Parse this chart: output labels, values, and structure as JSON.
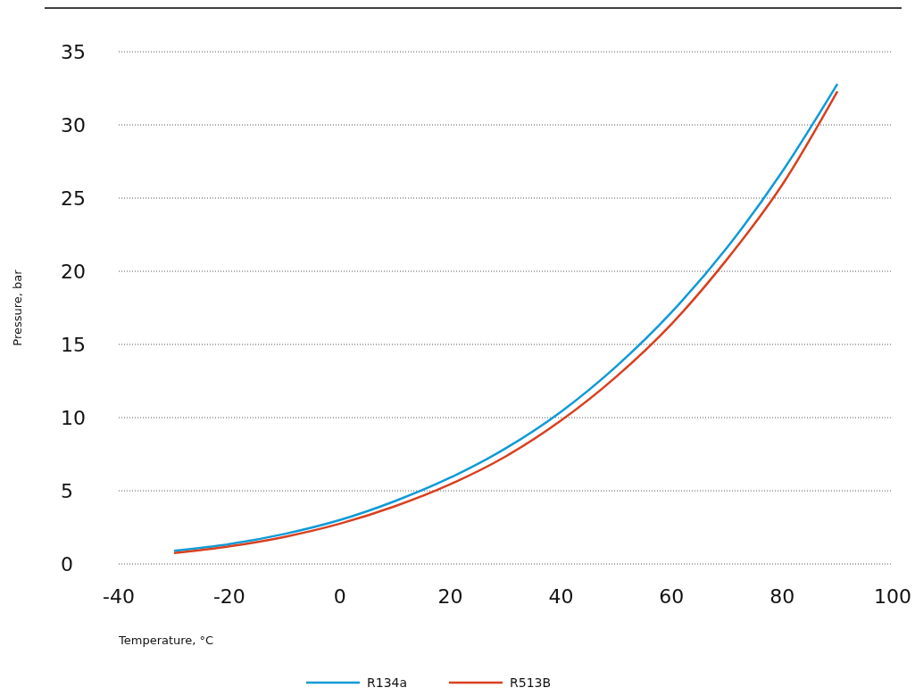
{
  "chart_data": {
    "type": "line",
    "xlabel": "Temperature, °C",
    "ylabel": "Pressure, bar",
    "x": [
      -30,
      -20,
      -10,
      0,
      10,
      20,
      30,
      40,
      50,
      60,
      70,
      80,
      90
    ],
    "series": [
      {
        "name": "R134a",
        "color": "#0f9ad6",
        "values": [
          0.9,
          1.35,
          2.05,
          3.0,
          4.3,
          5.9,
          7.9,
          10.4,
          13.5,
          17.2,
          21.6,
          26.8,
          32.8
        ]
      },
      {
        "name": "R513B",
        "color": "#d8401f",
        "values": [
          0.75,
          1.2,
          1.85,
          2.75,
          3.95,
          5.45,
          7.35,
          9.8,
          12.8,
          16.4,
          20.8,
          25.9,
          32.3
        ]
      }
    ],
    "xlim": [
      -40,
      100
    ],
    "xticks": [
      -40,
      -20,
      0,
      20,
      40,
      60,
      80,
      100
    ],
    "ylim": [
      0,
      35
    ],
    "yticks": [
      0,
      5,
      10,
      15,
      20,
      25,
      30,
      35
    ],
    "grid": "y",
    "legend": "bottom",
    "marker": "none",
    "line_style": "solid"
  }
}
